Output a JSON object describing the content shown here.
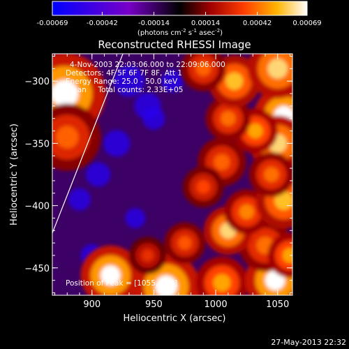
{
  "chart_data": {
    "type": "heatmap",
    "title": "Reconstructed RHESSI Image",
    "xlabel": "Heliocentric X (arcsec)",
    "ylabel": "Heliocentric Y (arcsec)",
    "xlim": [
      868,
      1062
    ],
    "ylim": [
      -472,
      -278
    ],
    "x_ticks": [
      900,
      950,
      1000,
      1050
    ],
    "y_ticks": [
      -300,
      -350,
      -400,
      -450
    ],
    "colorbar": {
      "ticks": [
        -0.00069,
        -0.00042,
        -0.00014,
        0.00014,
        0.00042,
        0.00069
      ],
      "tick_labels": [
        "-0.00069",
        "-0.00042",
        "-0.00014",
        "0.00014",
        "0.00042",
        "0.00069"
      ],
      "unit_prefix": "(photons cm",
      "unit_middle": " s",
      "unit_end": " asec",
      "unit_close": ")",
      "unit_exp1": "-2",
      "unit_exp2": "-1",
      "unit_exp3": "-2"
    },
    "annotations": [
      "4-Nov-2003 22:03:06.000 to 22:09:06.000",
      "Detectors: 4F 5F 6F 7F 8F, Att 1",
      "Energy Range: 25.0 - 50.0 keV",
      "Clean     Total counts: 2.33E+05"
    ],
    "peak_label": "Position of Peak = [1055,-328]",
    "limb_line": [
      [
        868,
        -422
      ],
      [
        925,
        -278
      ]
    ],
    "sources": [
      {
        "x": 878,
        "y": -310,
        "v": 0.00069,
        "r": 22
      },
      {
        "x": 880,
        "y": -345,
        "v": 0.0004,
        "r": 18
      },
      {
        "x": 915,
        "y": -456,
        "v": 0.00069,
        "r": 16
      },
      {
        "x": 960,
        "y": -465,
        "v": 0.00069,
        "r": 18
      },
      {
        "x": 1005,
        "y": -462,
        "v": 0.0005,
        "r": 14
      },
      {
        "x": 1048,
        "y": -460,
        "v": 0.00069,
        "r": 16
      },
      {
        "x": 1040,
        "y": -432,
        "v": 0.00042,
        "r": 14
      },
      {
        "x": 1010,
        "y": -420,
        "v": 0.0006,
        "r": 13
      },
      {
        "x": 1025,
        "y": -405,
        "v": 0.00045,
        "r": 12
      },
      {
        "x": 1055,
        "y": -396,
        "v": 0.00055,
        "r": 15
      },
      {
        "x": 1055,
        "y": -328,
        "v": 0.00069,
        "r": 16
      },
      {
        "x": 1050,
        "y": -350,
        "v": 0.0006,
        "r": 15
      },
      {
        "x": 1032,
        "y": -340,
        "v": 0.0005,
        "r": 12
      },
      {
        "x": 1010,
        "y": -330,
        "v": 0.00042,
        "r": 12
      },
      {
        "x": 1015,
        "y": -300,
        "v": 0.00055,
        "r": 14
      },
      {
        "x": 1050,
        "y": -290,
        "v": 0.0006,
        "r": 16
      },
      {
        "x": 990,
        "y": -290,
        "v": 0.0004,
        "r": 12
      },
      {
        "x": 1005,
        "y": -365,
        "v": 0.0004,
        "r": 13
      },
      {
        "x": 990,
        "y": -385,
        "v": 0.00035,
        "r": 11
      },
      {
        "x": 1045,
        "y": -375,
        "v": 0.00042,
        "r": 12
      },
      {
        "x": 975,
        "y": -430,
        "v": 0.00038,
        "r": 11
      },
      {
        "x": 945,
        "y": -440,
        "v": 0.0003,
        "r": 10
      },
      {
        "x": 1060,
        "y": -440,
        "v": 0.0005,
        "r": 12
      }
    ],
    "background_level": -0.00014
  },
  "footer": {
    "timestamp": "27-May-2013 22:32"
  }
}
